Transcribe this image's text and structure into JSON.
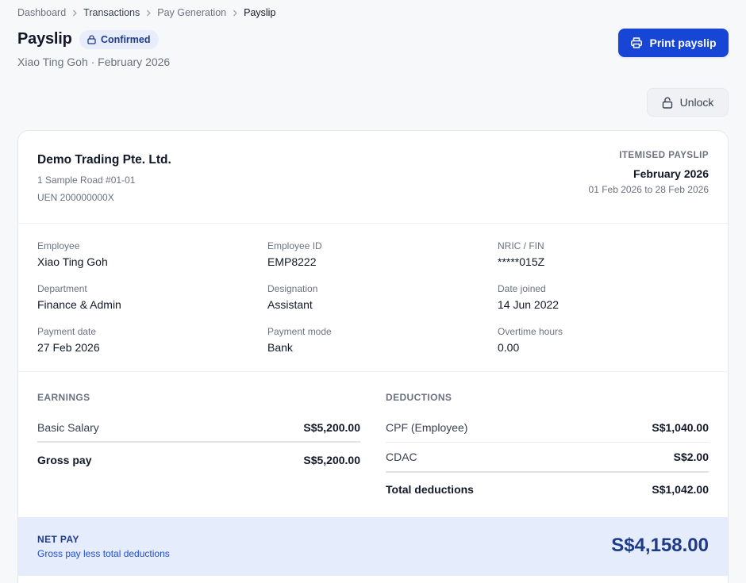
{
  "breadcrumb": {
    "items": [
      "Dashboard",
      "Transactions",
      "Pay Generation",
      "Payslip"
    ]
  },
  "header": {
    "title": "Payslip",
    "status_badge": "Confirmed",
    "subtitle": "Xiao Ting Goh · February 2026",
    "print_label": "Print payslip",
    "unlock_label": "Unlock"
  },
  "company": {
    "name": "Demo Trading Pte. Ltd.",
    "address": "1 Sample Road #01-01",
    "uen": "UEN 200000000X"
  },
  "payslip_meta": {
    "label": "ITEMISED PAYSLIP",
    "month": "February 2026",
    "range": "01 Feb 2026 to 28 Feb 2026"
  },
  "employee_fields": [
    {
      "label": "Employee",
      "value": "Xiao Ting Goh"
    },
    {
      "label": "Employee ID",
      "value": "EMP8222"
    },
    {
      "label": "NRIC / FIN",
      "value": "*****015Z"
    },
    {
      "label": "Department",
      "value": "Finance & Admin"
    },
    {
      "label": "Designation",
      "value": "Assistant"
    },
    {
      "label": "Date joined",
      "value": "14 Jun 2022"
    },
    {
      "label": "Payment date",
      "value": "27 Feb 2026"
    },
    {
      "label": "Payment mode",
      "value": "Bank"
    },
    {
      "label": "Overtime hours",
      "value": "0.00"
    }
  ],
  "earnings": {
    "title": "EARNINGS",
    "items": [
      {
        "label": "Basic Salary",
        "amount": "S$5,200.00"
      }
    ],
    "total": {
      "label": "Gross pay",
      "amount": "S$5,200.00"
    }
  },
  "deductions": {
    "title": "DEDUCTIONS",
    "items": [
      {
        "label": "CPF (Employee)",
        "amount": "S$1,040.00"
      },
      {
        "label": "CDAC",
        "amount": "S$2.00"
      }
    ],
    "total": {
      "label": "Total deductions",
      "amount": "S$1,042.00"
    }
  },
  "net_pay": {
    "label": "NET PAY",
    "sub": "Gross pay less total deductions",
    "amount": "S$4,158.00"
  },
  "colors": {
    "primary": "#1746d6",
    "badge_bg": "#e7edfb",
    "netpay_bg": "#e5ecfb",
    "netpay_text": "#1e3a8a"
  },
  "icons": {
    "breadcrumb_separator": "chevron-right-icon",
    "badge": "lock-icon",
    "print": "printer-icon",
    "unlock": "unlock-icon"
  }
}
